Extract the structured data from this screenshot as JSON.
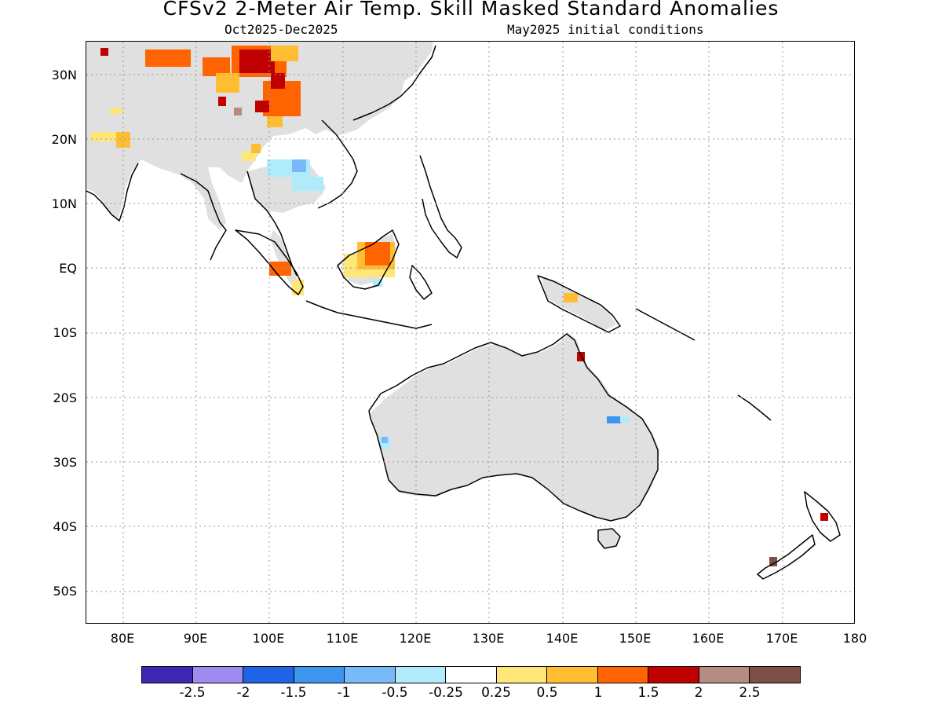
{
  "header": {
    "title": "CFSv2 2-Meter Air Temp. Skill Masked Standard Anomalies",
    "period": "Oct2025-Dec2025",
    "init": "May2025 initial conditions"
  },
  "axes": {
    "lat_labels": [
      "30N",
      "20N",
      "10N",
      "EQ",
      "10S",
      "20S",
      "30S",
      "40S",
      "50S"
    ],
    "lon_labels": [
      "80E",
      "90E",
      "100E",
      "110E",
      "120E",
      "130E",
      "140E",
      "150E",
      "160E",
      "170E",
      "180"
    ],
    "lon_range": [
      75,
      180
    ],
    "lat_range": [
      -55,
      35
    ]
  },
  "colorbar": {
    "labels": [
      "-2.5",
      "-2",
      "-1.5",
      "-1",
      "-0.5",
      "-0.25",
      "0.25",
      "0.5",
      "1",
      "1.5",
      "2",
      "2.5"
    ],
    "colors": [
      "#3c28b4",
      "#a08cf0",
      "#1e64e6",
      "#3c96f0",
      "#78b9fa",
      "#afebfa",
      "#ffffff",
      "#ffe678",
      "#ffbe32",
      "#ff6400",
      "#c00000",
      "#b48c82",
      "#7d5046"
    ]
  },
  "map": {
    "land_color": "#e0e0e0",
    "grid": true
  }
}
